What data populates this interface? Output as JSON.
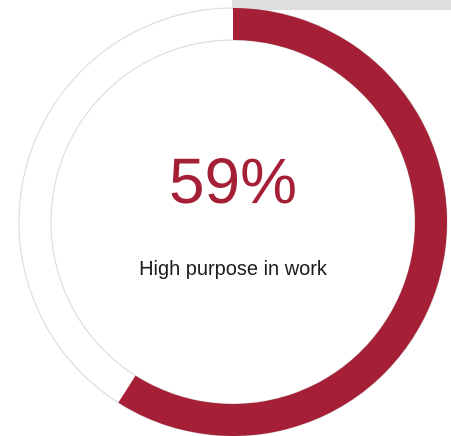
{
  "chart_data": {
    "type": "pie",
    "value": 59,
    "value_label": "59%",
    "caption": "High purpose in work",
    "max": 100
  },
  "colors": {
    "accent": "#a51f36",
    "track": "#dedede",
    "background": "#ffffff",
    "text": "#1c1c1c"
  }
}
